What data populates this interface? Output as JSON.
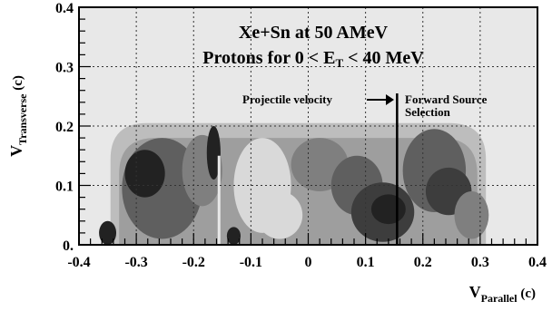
{
  "chart_data": {
    "type": "heatmap",
    "title_line1": "Xe+Sn at 50 AMeV",
    "title_line2_prefix": "Protons for 0 < E",
    "title_line2_sub": "T",
    "title_line2_suffix": " < 40 MeV",
    "xlabel": {
      "main": "V",
      "sub": "Parallel",
      "unit": " (c)"
    },
    "ylabel": {
      "main": "V",
      "sub": "Transverse",
      "unit": " (c)"
    },
    "xlim": [
      -0.4,
      0.4
    ],
    "ylim": [
      0,
      0.4
    ],
    "x_ticks": [
      {
        "value": -0.4,
        "label": "-0.4"
      },
      {
        "value": -0.3,
        "label": "-0.3"
      },
      {
        "value": -0.2,
        "label": "-0.2"
      },
      {
        "value": -0.1,
        "label": "-0.1"
      },
      {
        "value": 0.0,
        "label": "0"
      },
      {
        "value": 0.1,
        "label": "0.1"
      },
      {
        "value": 0.2,
        "label": "0.2"
      },
      {
        "value": 0.3,
        "label": "0.3"
      },
      {
        "value": 0.4,
        "label": "0.4"
      }
    ],
    "y_ticks": [
      {
        "value": 0.0,
        "label": "0."
      },
      {
        "value": 0.1,
        "label": "0.1"
      },
      {
        "value": 0.2,
        "label": "0.2"
      },
      {
        "value": 0.3,
        "label": "0.3"
      },
      {
        "value": 0.4,
        "label": "0.4"
      }
    ],
    "grid": true,
    "grid_style": "dotted",
    "projectile_velocity_x": 0.155,
    "annotations": {
      "projectile": "Projectile velocity",
      "forward_line1": "Forward Source",
      "forward_line2": "Selection"
    },
    "colors": {
      "background": "#e8e8e8",
      "levels": [
        "#d9d9d9",
        "#bdbdbd",
        "#9e9e9e",
        "#7f7f7f",
        "#5f5f5f",
        "#3d3d3d",
        "#222222"
      ]
    },
    "regions": [
      {
        "label": "",
        "shape": "dome",
        "xmin": -0.345,
        "xmax": 0.31,
        "ymax": 0.205,
        "level": 1
      },
      {
        "label": "",
        "shape": "dome",
        "xmin": -0.33,
        "xmax": 0.295,
        "ymax": 0.18,
        "level": 2
      },
      {
        "label": "",
        "shape": "blob",
        "cx": -0.255,
        "cy": 0.095,
        "rx": 0.07,
        "ry": 0.085,
        "level": 4
      },
      {
        "label": "",
        "shape": "blob",
        "cx": -0.285,
        "cy": 0.12,
        "rx": 0.035,
        "ry": 0.04,
        "level": 6
      },
      {
        "label": "",
        "shape": "blob",
        "cx": -0.185,
        "cy": 0.125,
        "rx": 0.035,
        "ry": 0.06,
        "level": 3
      },
      {
        "label": "",
        "shape": "blob",
        "cx": -0.165,
        "cy": 0.155,
        "rx": 0.012,
        "ry": 0.045,
        "level": 6
      },
      {
        "label": "",
        "shape": "blob",
        "cx": -0.08,
        "cy": 0.1,
        "rx": 0.05,
        "ry": 0.08,
        "level": 0
      },
      {
        "label": "",
        "shape": "blob",
        "cx": -0.05,
        "cy": 0.05,
        "rx": 0.04,
        "ry": 0.04,
        "level": 0
      },
      {
        "label": "",
        "shape": "blob",
        "cx": 0.02,
        "cy": 0.135,
        "rx": 0.05,
        "ry": 0.045,
        "level": 3
      },
      {
        "label": "",
        "shape": "blob",
        "cx": 0.085,
        "cy": 0.1,
        "rx": 0.045,
        "ry": 0.05,
        "level": 4
      },
      {
        "label": "",
        "shape": "blob",
        "cx": 0.13,
        "cy": 0.055,
        "rx": 0.055,
        "ry": 0.05,
        "level": 5
      },
      {
        "label": "",
        "shape": "blob",
        "cx": 0.14,
        "cy": 0.06,
        "rx": 0.03,
        "ry": 0.025,
        "level": 6
      },
      {
        "label": "",
        "shape": "blob",
        "cx": 0.22,
        "cy": 0.125,
        "rx": 0.055,
        "ry": 0.07,
        "level": 4
      },
      {
        "label": "",
        "shape": "blob",
        "cx": 0.245,
        "cy": 0.09,
        "rx": 0.04,
        "ry": 0.04,
        "level": 5
      },
      {
        "label": "",
        "shape": "blob",
        "cx": 0.285,
        "cy": 0.05,
        "rx": 0.03,
        "ry": 0.04,
        "level": 3
      },
      {
        "label": "",
        "shape": "blob",
        "cx": -0.35,
        "cy": 0.02,
        "rx": 0.015,
        "ry": 0.02,
        "level": 6
      },
      {
        "label": "",
        "shape": "blob",
        "cx": -0.13,
        "cy": 0.015,
        "rx": 0.012,
        "ry": 0.015,
        "level": 6
      }
    ]
  }
}
